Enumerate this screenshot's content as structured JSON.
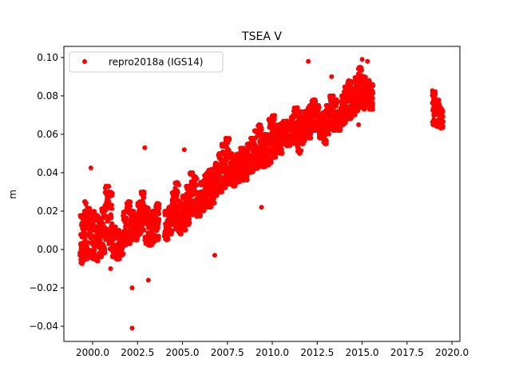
{
  "chart_data": {
    "type": "scatter",
    "title": "TSEA V",
    "xlabel": "",
    "ylabel": "m",
    "xlim": [
      1998.4,
      2020.44
    ],
    "ylim": [
      -0.0479,
      0.1058
    ],
    "xticks": [
      2000.0,
      2002.5,
      2005.0,
      2007.5,
      2010.0,
      2012.5,
      2015.0,
      2017.5,
      2020.0
    ],
    "xtick_labels": [
      "2000.0",
      "2002.5",
      "2005.0",
      "2007.5",
      "2010.0",
      "2012.5",
      "2015.0",
      "2017.5",
      "2020.0"
    ],
    "yticks": [
      -0.04,
      -0.02,
      0.0,
      0.02,
      0.04,
      0.06,
      0.08,
      0.1
    ],
    "ytick_labels": [
      "−0.04",
      "−0.02",
      "0.00",
      "0.02",
      "0.04",
      "0.06",
      "0.08",
      "0.10"
    ],
    "grid": false,
    "legend": {
      "position": "top-left",
      "entries": [
        "repro2018a (IGS14)"
      ]
    },
    "series": [
      {
        "name": "repro2018a (IGS14)",
        "color": "#ff0000",
        "marker": "circle",
        "binned_range_note_units": "decimal year, m",
        "bins": [
          [
            1999.4,
            -0.008,
            0.018
          ],
          [
            1999.6,
            -0.005,
            0.025
          ],
          [
            1999.8,
            -0.003,
            0.022
          ],
          [
            2000.0,
            -0.005,
            0.02
          ],
          [
            2000.2,
            -0.006,
            0.018
          ],
          [
            2000.4,
            -0.004,
            0.015
          ],
          [
            2000.6,
            -0.002,
            0.022
          ],
          [
            2000.8,
            0.005,
            0.033
          ],
          [
            2001.0,
            0.0,
            0.03
          ],
          [
            2001.2,
            -0.004,
            0.012
          ],
          [
            2001.4,
            -0.005,
            0.01
          ],
          [
            2001.6,
            -0.003,
            0.008
          ],
          [
            2001.8,
            0.002,
            0.02
          ],
          [
            2002.0,
            0.003,
            0.025
          ],
          [
            2002.2,
            0.005,
            0.02
          ],
          [
            2002.4,
            0.005,
            0.018
          ],
          [
            2002.6,
            0.008,
            0.025
          ],
          [
            2002.8,
            0.01,
            0.03
          ],
          [
            2003.0,
            0.003,
            0.022
          ],
          [
            2003.2,
            0.002,
            0.018
          ],
          [
            2003.4,
            0.004,
            0.02
          ],
          [
            2003.6,
            0.005,
            0.024
          ],
          [
            2004.1,
            0.005,
            0.02
          ],
          [
            2004.3,
            0.008,
            0.022
          ],
          [
            2004.5,
            0.013,
            0.03
          ],
          [
            2004.7,
            0.01,
            0.035
          ],
          [
            2004.9,
            0.008,
            0.025
          ],
          [
            2005.1,
            0.01,
            0.028
          ],
          [
            2005.3,
            0.013,
            0.033
          ],
          [
            2005.5,
            0.018,
            0.04
          ],
          [
            2005.7,
            0.02,
            0.038
          ],
          [
            2005.9,
            0.017,
            0.03
          ],
          [
            2006.1,
            0.02,
            0.035
          ],
          [
            2006.3,
            0.022,
            0.04
          ],
          [
            2006.5,
            0.022,
            0.042
          ],
          [
            2006.7,
            0.024,
            0.04
          ],
          [
            2006.9,
            0.028,
            0.045
          ],
          [
            2007.1,
            0.03,
            0.05
          ],
          [
            2007.3,
            0.032,
            0.055
          ],
          [
            2007.5,
            0.035,
            0.058
          ],
          [
            2007.7,
            0.034,
            0.05
          ],
          [
            2007.9,
            0.033,
            0.048
          ],
          [
            2008.1,
            0.035,
            0.05
          ],
          [
            2008.3,
            0.037,
            0.053
          ],
          [
            2008.5,
            0.036,
            0.05
          ],
          [
            2008.7,
            0.04,
            0.055
          ],
          [
            2008.9,
            0.04,
            0.058
          ],
          [
            2009.1,
            0.042,
            0.062
          ],
          [
            2009.3,
            0.045,
            0.065
          ],
          [
            2009.5,
            0.043,
            0.06
          ],
          [
            2009.7,
            0.044,
            0.06
          ],
          [
            2009.9,
            0.045,
            0.068
          ],
          [
            2010.1,
            0.048,
            0.07
          ],
          [
            2010.3,
            0.05,
            0.065
          ],
          [
            2010.5,
            0.05,
            0.066
          ],
          [
            2010.7,
            0.055,
            0.067
          ],
          [
            2010.9,
            0.054,
            0.064
          ],
          [
            2011.1,
            0.055,
            0.07
          ],
          [
            2011.3,
            0.055,
            0.074
          ],
          [
            2011.5,
            0.05,
            0.072
          ],
          [
            2011.7,
            0.055,
            0.068
          ],
          [
            2011.9,
            0.06,
            0.072
          ],
          [
            2012.1,
            0.058,
            0.075
          ],
          [
            2012.3,
            0.062,
            0.078
          ],
          [
            2012.5,
            0.062,
            0.075
          ],
          [
            2012.7,
            0.058,
            0.07
          ],
          [
            2012.9,
            0.055,
            0.072
          ],
          [
            2013.1,
            0.06,
            0.075
          ],
          [
            2013.3,
            0.065,
            0.08
          ],
          [
            2013.5,
            0.062,
            0.078
          ],
          [
            2013.7,
            0.062,
            0.072
          ],
          [
            2013.9,
            0.065,
            0.08
          ],
          [
            2014.1,
            0.066,
            0.085
          ],
          [
            2014.3,
            0.068,
            0.088
          ],
          [
            2014.5,
            0.07,
            0.084
          ],
          [
            2014.7,
            0.072,
            0.09
          ],
          [
            2014.9,
            0.074,
            0.095
          ],
          [
            2015.1,
            0.073,
            0.09
          ],
          [
            2015.3,
            0.075,
            0.088
          ],
          [
            2015.5,
            0.073,
            0.086
          ],
          [
            2019.0,
            0.065,
            0.083
          ],
          [
            2019.2,
            0.064,
            0.078
          ],
          [
            2019.4,
            0.063,
            0.074
          ]
        ],
        "outliers": [
          [
            1999.9,
            0.0425
          ],
          [
            2002.2,
            -0.02
          ],
          [
            2002.2,
            -0.041
          ],
          [
            2002.9,
            0.053
          ],
          [
            2005.1,
            0.052
          ],
          [
            2012.0,
            0.098
          ],
          [
            2015.0,
            0.099
          ],
          [
            2015.3,
            0.098
          ],
          [
            2003.1,
            -0.016
          ],
          [
            2001.0,
            -0.01
          ],
          [
            2006.8,
            -0.003
          ],
          [
            2009.4,
            0.022
          ],
          [
            2014.8,
            0.065
          ],
          [
            2013.3,
            0.09
          ]
        ]
      }
    ]
  }
}
